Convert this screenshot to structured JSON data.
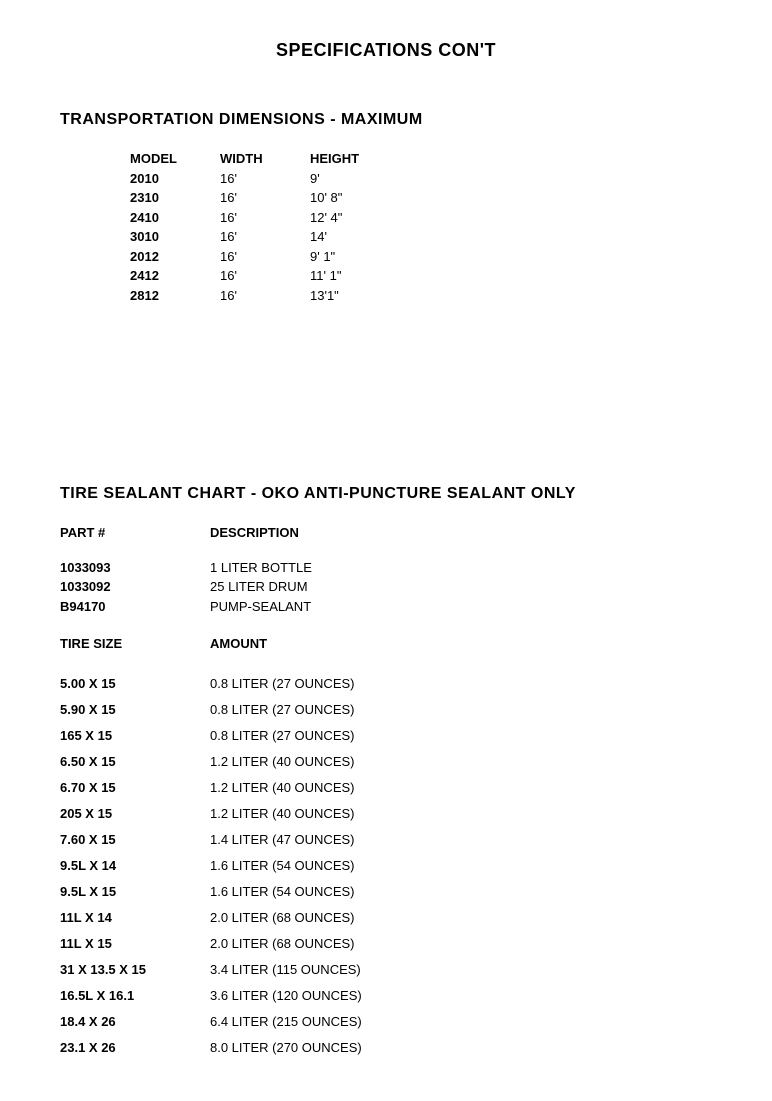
{
  "page_title": "SPECIFICATIONS CON'T",
  "transport": {
    "heading": "TRANSPORTATION DIMENSIONS - MAXIMUM",
    "columns": [
      "MODEL",
      "WIDTH",
      "HEIGHT"
    ],
    "rows": [
      [
        "2010",
        "16'",
        "9'"
      ],
      [
        "2310",
        "16'",
        "10' 8\""
      ],
      [
        "2410",
        "16'",
        "12' 4\""
      ],
      [
        "3010",
        "16'",
        "14'"
      ],
      [
        "2012",
        "16'",
        "9' 1\""
      ],
      [
        "2412",
        "16'",
        "11' 1\""
      ],
      [
        "2812",
        "16'",
        "13'1\""
      ]
    ]
  },
  "sealant": {
    "heading": "TIRE SEALANT CHART - OKO ANTI-PUNCTURE SEALANT ONLY",
    "parts": {
      "columns": [
        "PART #",
        "DESCRIPTION"
      ],
      "rows": [
        [
          "1033093",
          "1 LITER BOTTLE"
        ],
        [
          "1033092",
          "25 LITER DRUM"
        ],
        [
          "B94170",
          "PUMP-SEALANT"
        ]
      ]
    },
    "tires": {
      "columns": [
        "TIRE SIZE",
        "AMOUNT"
      ],
      "rows": [
        [
          "5.00 X 15",
          "0.8 LITER (27 OUNCES)"
        ],
        [
          "5.90 X 15",
          "0.8 LITER (27 OUNCES)"
        ],
        [
          "165 X 15",
          "0.8 LITER (27 OUNCES)"
        ],
        [
          "6.50 X 15",
          "1.2 LITER (40 OUNCES)"
        ],
        [
          "6.70 X 15",
          "1.2 LITER (40 OUNCES)"
        ],
        [
          "205 X 15",
          "1.2 LITER (40 OUNCES)"
        ],
        [
          "7.60 X 15",
          "1.4 LITER (47 OUNCES)"
        ],
        [
          "9.5L X 14",
          "1.6 LITER (54 OUNCES)"
        ],
        [
          "9.5L X 15",
          "1.6 LITER (54 OUNCES)"
        ],
        [
          "11L X 14",
          "2.0 LITER (68 OUNCES)"
        ],
        [
          "11L X 15",
          "2.0 LITER (68 OUNCES)"
        ],
        [
          "31 X 13.5 X 15",
          "3.4 LITER (115 OUNCES)"
        ],
        [
          "16.5L X 16.1",
          "3.6 LITER (120 OUNCES)"
        ],
        [
          "18.4 X 26",
          "6.4 LITER (215 OUNCES)"
        ],
        [
          "23.1 X 26",
          "8.0 LITER (270 OUNCES)"
        ]
      ]
    }
  }
}
